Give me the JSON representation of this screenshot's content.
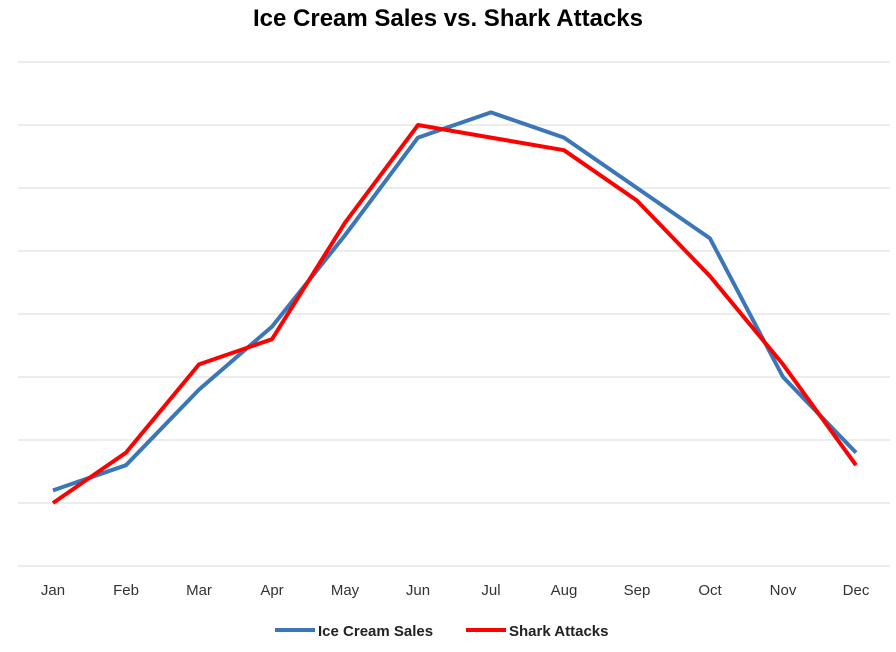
{
  "chart_data": {
    "type": "line",
    "title": "Ice Cream Sales vs. Shark Attacks",
    "xlabel": "",
    "ylabel": "",
    "categories": [
      "Jan",
      "Feb",
      "Mar",
      "Apr",
      "May",
      "Jun",
      "Jul",
      "Aug",
      "Sep",
      "Oct",
      "Nov",
      "Dec"
    ],
    "ylim": [
      0,
      8
    ],
    "y_tick_labels_shown": false,
    "grid": true,
    "legend": "bottom",
    "series": [
      {
        "name": "Ice Cream Sales",
        "color": "#3B76B8",
        "values": [
          1.2,
          1.6,
          2.8,
          3.8,
          5.25,
          6.8,
          7.2,
          6.8,
          6.0,
          5.2,
          3.0,
          1.8
        ]
      },
      {
        "name": "Shark Attacks",
        "color": "#FF0000",
        "values": [
          1.0,
          1.8,
          3.2,
          3.6,
          5.45,
          7.0,
          6.8,
          6.6,
          5.8,
          4.6,
          3.2,
          1.6
        ]
      }
    ]
  }
}
